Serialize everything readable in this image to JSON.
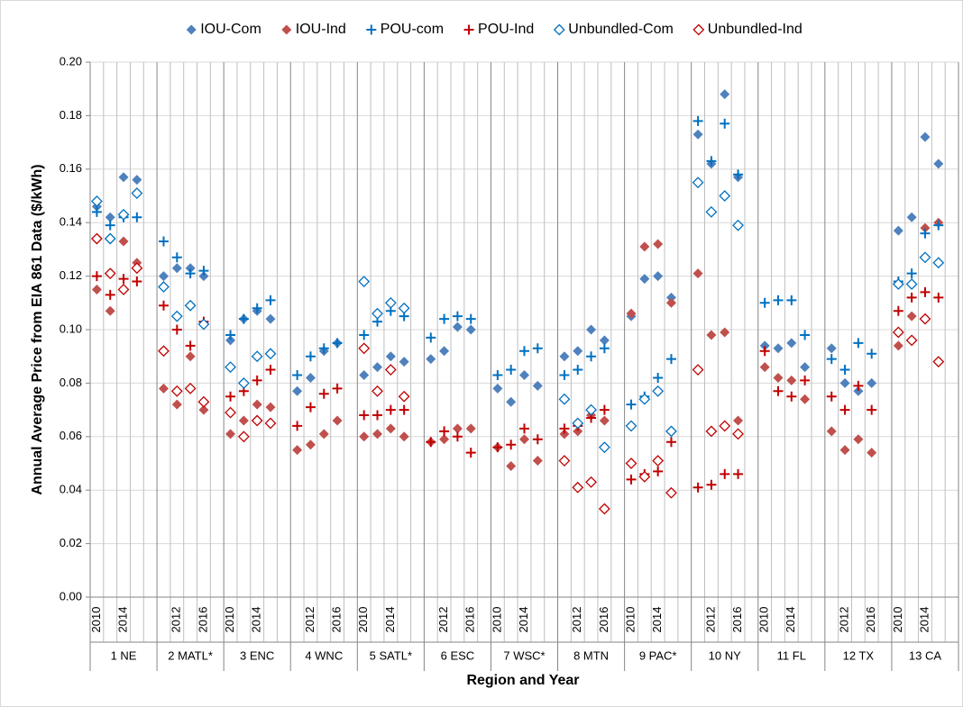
{
  "chart_data": {
    "type": "scatter",
    "x_label": "Region and Year",
    "y_label": "Annual Average Price from EIA 861 Data ($/kWh)",
    "groups": [
      "1 NE",
      "2 MATL*",
      "3 ENC",
      "4 WNC",
      "5 SATL*",
      "6 ESC",
      "7 WSC*",
      "8 MTN",
      "9 PAC*",
      "10 NY",
      "11 FL",
      "12 TX",
      "13 CA"
    ],
    "categories": [
      "2010",
      null,
      "2014",
      null,
      null,
      "2012",
      null,
      "2016",
      "2010",
      null,
      "2014",
      null,
      null,
      "2012",
      null,
      "2016",
      "2010",
      null,
      "2014",
      null,
      null,
      "2012",
      null,
      "2016",
      "2010",
      null,
      "2014",
      null,
      null,
      "2012",
      null,
      "2016",
      "2010",
      null,
      "2014",
      null,
      null,
      "2012",
      null,
      "2016",
      "2010",
      null,
      "2014",
      null,
      null,
      "2012",
      null,
      "2016",
      "2010",
      null,
      "2014",
      null
    ],
    "ylim": [
      0,
      0.2
    ],
    "yticks": [
      {
        "value": 0,
        "label": "0.00"
      },
      {
        "value": 0.02,
        "label": "0.02"
      },
      {
        "value": 0.04,
        "label": "0.04"
      },
      {
        "value": 0.06,
        "label": "0.06"
      },
      {
        "value": 0.08,
        "label": "0.08"
      },
      {
        "value": 0.1,
        "label": "0.10"
      },
      {
        "value": 0.12,
        "label": "0.12"
      },
      {
        "value": 0.14,
        "label": "0.14"
      },
      {
        "value": 0.16,
        "label": "0.16"
      },
      {
        "value": 0.18,
        "label": "0.18"
      },
      {
        "value": 0.2,
        "label": "0.20"
      }
    ],
    "grid": true,
    "legend": "top",
    "series": [
      {
        "name": "IOU-Com",
        "color": "#4f81bd",
        "marker": "diamond",
        "values": [
          0.146,
          0.142,
          0.157,
          0.156,
          0.12,
          0.123,
          0.123,
          0.12,
          0.096,
          0.104,
          0.107,
          0.104,
          0.077,
          0.082,
          0.092,
          0.095,
          0.083,
          0.086,
          0.09,
          0.088,
          0.089,
          0.092,
          0.101,
          0.1,
          0.078,
          0.073,
          0.083,
          0.079,
          0.09,
          0.092,
          0.1,
          0.096,
          0.105,
          0.119,
          0.12,
          0.112,
          0.173,
          0.162,
          0.188,
          0.157,
          0.094,
          0.093,
          0.095,
          0.086,
          0.093,
          0.08,
          0.077,
          0.08,
          0.137,
          0.142,
          0.172,
          0.162
        ]
      },
      {
        "name": "IOU-Ind",
        "color": "#c0504d",
        "marker": "diamond",
        "values": [
          0.115,
          0.107,
          0.133,
          0.125,
          0.078,
          0.072,
          0.09,
          0.07,
          0.061,
          0.066,
          0.072,
          0.071,
          0.055,
          0.057,
          0.061,
          0.066,
          0.06,
          0.061,
          0.063,
          0.06,
          0.058,
          0.059,
          0.063,
          0.063,
          0.056,
          0.049,
          0.059,
          0.051,
          0.061,
          0.062,
          0.068,
          0.066,
          0.106,
          0.131,
          0.132,
          0.11,
          0.121,
          0.098,
          0.099,
          0.066,
          0.086,
          0.082,
          0.081,
          0.074,
          0.062,
          0.055,
          0.059,
          0.054,
          0.094,
          0.105,
          0.138,
          0.14
        ]
      },
      {
        "name": "POU-com",
        "color": "#0070c0",
        "marker": "plus",
        "values": [
          0.144,
          0.139,
          0.142,
          0.142,
          0.133,
          0.127,
          0.121,
          0.122,
          0.098,
          0.104,
          0.108,
          0.111,
          0.083,
          0.09,
          0.093,
          0.095,
          0.098,
          0.103,
          0.107,
          0.105,
          0.097,
          0.104,
          0.105,
          0.104,
          0.083,
          0.085,
          0.092,
          0.093,
          0.083,
          0.085,
          0.09,
          0.093,
          0.072,
          0.075,
          0.082,
          0.089,
          0.178,
          0.163,
          0.177,
          0.158,
          0.11,
          0.111,
          0.111,
          0.098,
          0.089,
          0.085,
          0.095,
          0.091,
          0.118,
          0.121,
          0.136,
          0.139
        ]
      },
      {
        "name": "POU-Ind",
        "color": "#c00000",
        "marker": "plus",
        "values": [
          0.12,
          0.113,
          0.119,
          0.118,
          0.109,
          0.1,
          0.094,
          0.103,
          0.075,
          0.077,
          0.081,
          0.085,
          0.064,
          0.071,
          0.076,
          0.078,
          0.068,
          0.068,
          0.07,
          0.07,
          0.058,
          0.062,
          0.06,
          0.054,
          0.056,
          0.057,
          0.063,
          0.059,
          0.063,
          0.064,
          0.067,
          0.07,
          0.044,
          0.046,
          0.047,
          0.058,
          0.041,
          0.042,
          0.046,
          0.046,
          0.092,
          0.077,
          0.075,
          0.081,
          0.075,
          0.07,
          0.079,
          0.07,
          0.107,
          0.112,
          0.114,
          0.112
        ]
      },
      {
        "name": "Unbundled-Com",
        "color": "#0070c0",
        "marker": "diamond-open",
        "values": [
          0.148,
          0.134,
          0.143,
          0.151,
          0.116,
          0.105,
          0.109,
          0.102,
          0.086,
          0.08,
          0.09,
          0.091,
          null,
          null,
          null,
          null,
          0.118,
          0.106,
          0.11,
          0.108,
          null,
          null,
          null,
          null,
          null,
          null,
          null,
          null,
          0.074,
          0.065,
          0.07,
          0.056,
          0.064,
          0.074,
          0.077,
          0.062,
          0.155,
          0.144,
          0.15,
          0.139,
          null,
          null,
          null,
          null,
          null,
          null,
          null,
          null,
          0.117,
          0.117,
          0.127,
          0.125
        ]
      },
      {
        "name": "Unbundled-Ind",
        "color": "#c00000",
        "marker": "diamond-open",
        "values": [
          0.134,
          0.121,
          0.115,
          0.123,
          0.092,
          0.077,
          0.078,
          0.073,
          0.069,
          0.06,
          0.066,
          0.065,
          null,
          null,
          null,
          null,
          0.093,
          0.077,
          0.085,
          0.075,
          null,
          null,
          null,
          null,
          null,
          null,
          null,
          null,
          0.051,
          0.041,
          0.043,
          0.033,
          0.05,
          0.045,
          0.051,
          0.039,
          0.085,
          0.062,
          0.064,
          0.061,
          null,
          null,
          null,
          null,
          null,
          null,
          null,
          null,
          0.099,
          0.096,
          0.104,
          0.088
        ]
      }
    ]
  }
}
